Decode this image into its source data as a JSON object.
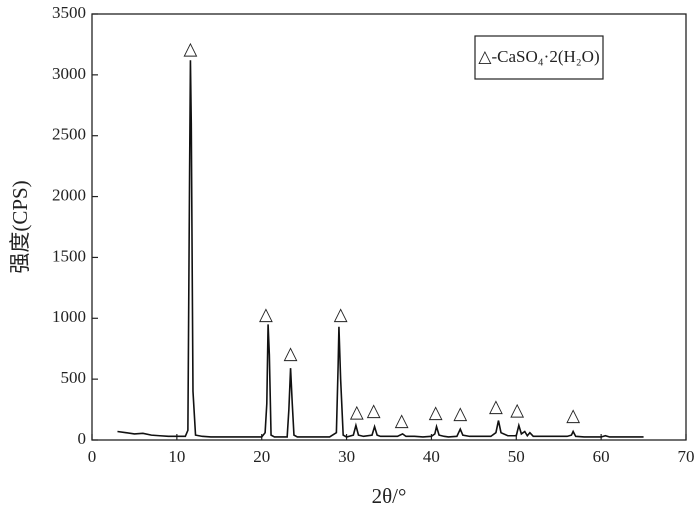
{
  "chart_data": {
    "type": "line",
    "xlabel": "2θ/°",
    "ylabel": "强度(CPS)",
    "xlim": [
      0,
      70
    ],
    "xticks": [
      0,
      10,
      20,
      30,
      40,
      50,
      60,
      70
    ],
    "ylim": [
      0,
      3500
    ],
    "yticks": [
      0,
      500,
      1000,
      1500,
      2000,
      2500,
      3000,
      3500
    ],
    "legend": "upper right",
    "x": [
      3,
      4,
      5,
      6,
      7,
      8,
      9,
      10,
      11,
      11.3,
      11.5,
      11.6,
      11.7,
      11.9,
      12.2,
      13,
      14,
      15,
      16,
      17,
      18,
      19,
      20,
      20.4,
      20.6,
      20.75,
      20.9,
      21.1,
      21.5,
      22,
      23,
      23.2,
      23.4,
      23.6,
      23.8,
      24.2,
      25,
      26,
      27,
      28,
      28.8,
      29.0,
      29.1,
      29.3,
      29.6,
      30,
      30.8,
      31.1,
      31.4,
      32,
      33,
      33.3,
      33.6,
      34,
      35,
      36,
      36.6,
      37,
      38,
      39,
      40,
      40.4,
      40.6,
      40.9,
      41.5,
      42,
      43,
      43.4,
      43.7,
      44.5,
      45,
      46,
      47,
      47.6,
      47.9,
      48.2,
      49,
      50,
      50.3,
      50.6,
      51,
      51.3,
      51.6,
      52,
      53,
      54,
      55,
      56,
      56.5,
      56.7,
      57,
      58,
      59,
      60,
      60.5,
      61,
      62,
      63,
      64,
      65
    ],
    "series": [
      {
        "name": "△-CaSO₄·2(H₂O)",
        "color": "#111111",
        "values": [
          70,
          60,
          50,
          55,
          40,
          35,
          30,
          30,
          30,
          80,
          2200,
          3120,
          2600,
          400,
          40,
          30,
          25,
          25,
          25,
          25,
          25,
          25,
          25,
          60,
          300,
          950,
          700,
          40,
          25,
          25,
          25,
          250,
          590,
          300,
          40,
          25,
          25,
          25,
          25,
          25,
          60,
          600,
          930,
          500,
          40,
          25,
          40,
          120,
          40,
          30,
          40,
          110,
          40,
          30,
          30,
          30,
          50,
          30,
          30,
          25,
          30,
          50,
          110,
          40,
          30,
          25,
          30,
          90,
          40,
          30,
          30,
          30,
          30,
          60,
          160,
          60,
          35,
          35,
          120,
          50,
          70,
          35,
          60,
          30,
          30,
          30,
          30,
          30,
          40,
          70,
          30,
          25,
          25,
          25,
          35,
          25,
          25,
          25,
          25,
          25
        ]
      }
    ],
    "annotations": [
      {
        "text": "△",
        "x": 11.6,
        "y": 3200
      },
      {
        "text": "△",
        "x": 20.5,
        "y": 1020
      },
      {
        "text": "△",
        "x": 23.4,
        "y": 700
      },
      {
        "text": "△",
        "x": 29.3,
        "y": 1020
      },
      {
        "text": "△",
        "x": 31.2,
        "y": 220
      },
      {
        "text": "△",
        "x": 33.2,
        "y": 230
      },
      {
        "text": "△",
        "x": 36.5,
        "y": 150
      },
      {
        "text": "△",
        "x": 40.5,
        "y": 215
      },
      {
        "text": "△",
        "x": 43.4,
        "y": 205
      },
      {
        "text": "△",
        "x": 47.6,
        "y": 265
      },
      {
        "text": "△",
        "x": 50.1,
        "y": 235
      },
      {
        "text": "△",
        "x": 56.7,
        "y": 190
      }
    ]
  }
}
